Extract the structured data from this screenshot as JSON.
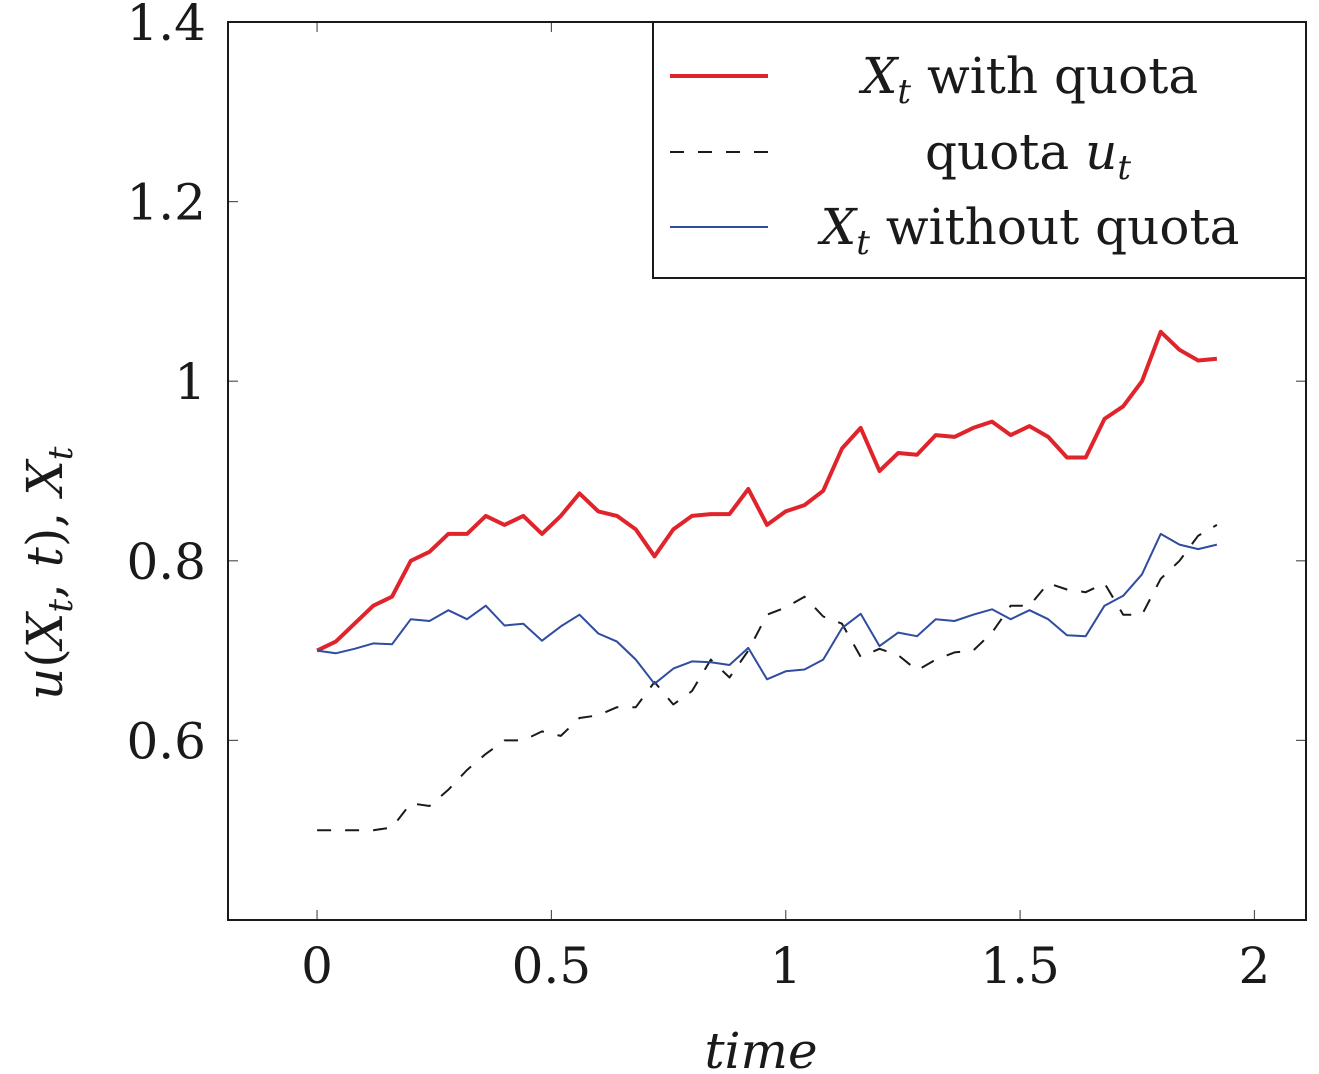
{
  "chart_data": {
    "type": "line",
    "xlabel": "time",
    "ylabel_parts": [
      "u(X",
      "t",
      ", t),",
      "X",
      "t"
    ],
    "xlim": [
      -0.19,
      2.11
    ],
    "ylim": [
      0.4,
      1.4
    ],
    "xticks": [
      0,
      0.5,
      1,
      1.5,
      2
    ],
    "xtick_labels": [
      "0",
      "0.5",
      "1",
      "1.5",
      "2"
    ],
    "yticks": [
      0.6,
      0.8,
      1.0,
      1.2,
      1.4
    ],
    "ytick_labels": [
      "0.6",
      "0.8",
      "1",
      "1.2",
      "1.4"
    ],
    "grid": false,
    "legend_position": "top-right",
    "x": [
      0,
      0.04,
      0.08,
      0.12,
      0.16,
      0.2,
      0.24,
      0.28,
      0.32,
      0.36,
      0.4,
      0.44,
      0.48,
      0.52,
      0.56,
      0.6,
      0.64,
      0.68,
      0.72,
      0.76,
      0.8,
      0.84,
      0.88,
      0.92,
      0.96,
      1.0,
      1.04,
      1.08,
      1.12,
      1.16,
      1.2,
      1.24,
      1.28,
      1.32,
      1.36,
      1.4,
      1.44,
      1.48,
      1.52,
      1.56,
      1.6,
      1.64,
      1.68,
      1.72,
      1.76,
      1.8,
      1.84,
      1.88,
      1.92
    ],
    "series": [
      {
        "name": "with quota",
        "legend_math": "X",
        "legend_sub": "t",
        "legend_text": " with quota",
        "color": "#e0242b",
        "dash": "none",
        "width": 4,
        "values": [
          0.7,
          0.71,
          0.73,
          0.75,
          0.76,
          0.8,
          0.81,
          0.83,
          0.83,
          0.85,
          0.84,
          0.85,
          0.83,
          0.85,
          0.875,
          0.855,
          0.85,
          0.835,
          0.805,
          0.835,
          0.85,
          0.852,
          0.852,
          0.88,
          0.84,
          0.855,
          0.862,
          0.878,
          0.925,
          0.948,
          0.9,
          0.92,
          0.918,
          0.94,
          0.938,
          0.948,
          0.955,
          0.94,
          0.95,
          0.938,
          0.915,
          0.915,
          0.958,
          0.972,
          1.0,
          1.055,
          1.035,
          1.023,
          1.025
        ]
      },
      {
        "name": "quota",
        "legend_math": "",
        "legend_sub": "",
        "legend_text": "quota ",
        "legend_math2": "u",
        "legend_sub2": "t",
        "color": "#1a1a1a",
        "dash": "14,14",
        "width": 2,
        "values": [
          0.5,
          0.5,
          0.5,
          0.5,
          0.503,
          0.53,
          0.527,
          0.545,
          0.567,
          0.585,
          0.6,
          0.6,
          0.61,
          0.605,
          0.625,
          0.628,
          0.637,
          0.637,
          0.665,
          0.64,
          0.655,
          0.69,
          0.67,
          0.7,
          0.74,
          0.748,
          0.76,
          0.738,
          0.73,
          0.693,
          0.702,
          0.695,
          0.678,
          0.69,
          0.698,
          0.7,
          0.72,
          0.75,
          0.75,
          0.775,
          0.768,
          0.765,
          0.775,
          0.74,
          0.74,
          0.78,
          0.8,
          0.828,
          0.84
        ]
      },
      {
        "name": "without quota",
        "legend_math": "X",
        "legend_sub": "t",
        "legend_text": " without quota",
        "color": "#2e4ca0",
        "dash": "none",
        "width": 2,
        "values": [
          0.7,
          0.697,
          0.702,
          0.708,
          0.707,
          0.735,
          0.733,
          0.745,
          0.735,
          0.75,
          0.728,
          0.73,
          0.711,
          0.727,
          0.74,
          0.719,
          0.71,
          0.69,
          0.663,
          0.68,
          0.688,
          0.687,
          0.684,
          0.703,
          0.668,
          0.677,
          0.679,
          0.69,
          0.725,
          0.741,
          0.705,
          0.72,
          0.716,
          0.735,
          0.733,
          0.74,
          0.746,
          0.735,
          0.745,
          0.735,
          0.717,
          0.716,
          0.75,
          0.761,
          0.785,
          0.83,
          0.818,
          0.813,
          0.818
        ]
      }
    ]
  }
}
